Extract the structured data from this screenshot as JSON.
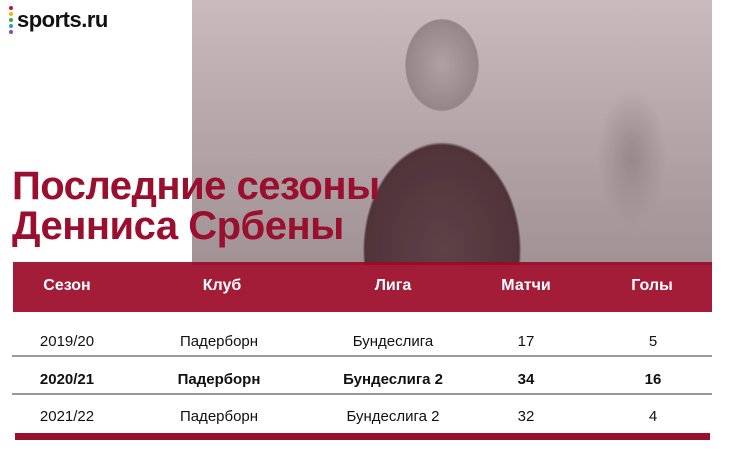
{
  "logo": {
    "text": "sports.ru",
    "dot_colors": [
      "#c8102e",
      "#f2b705",
      "#3cae3f",
      "#1ea0dc",
      "#8e44ad"
    ]
  },
  "title": {
    "line1": "Последние сезоны",
    "line2": "Денниса Србены"
  },
  "table": {
    "headers": [
      "Сезон",
      "Клуб",
      "Лига",
      "Матчи",
      "Голы"
    ],
    "rows": [
      {
        "season": "2019/20",
        "club": "Падерборн",
        "league": "Бундеслига",
        "matches": "17",
        "goals": "5",
        "bold": false
      },
      {
        "season": "2020/21",
        "club": "Падерборн",
        "league": "Бундеслига 2",
        "matches": "34",
        "goals": "16",
        "bold": true
      },
      {
        "season": "2021/22",
        "club": "Падерборн",
        "league": "Бундеслига 2",
        "matches": "32",
        "goals": "4",
        "bold": false
      }
    ]
  },
  "colors": {
    "accent": "#9b0f2e"
  }
}
